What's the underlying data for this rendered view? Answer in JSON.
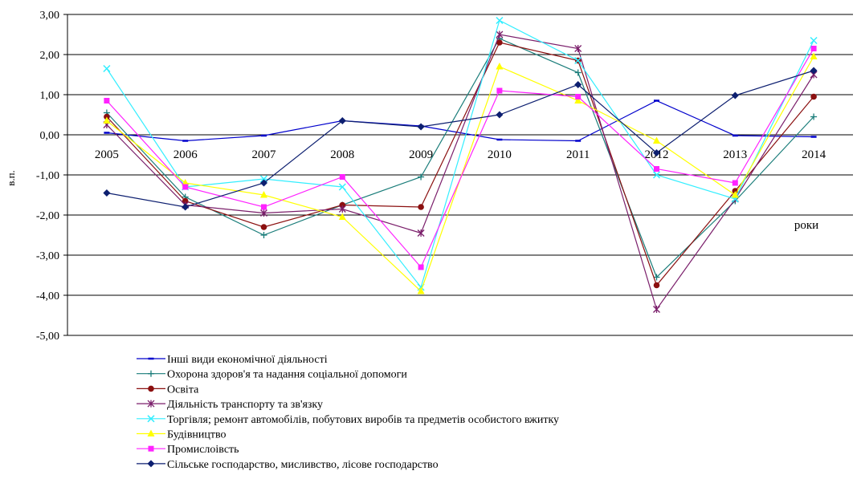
{
  "chart_data": {
    "type": "line",
    "title": "",
    "xlabel": "роки",
    "ylabel": "в.п.",
    "categories": [
      "2005",
      "2006",
      "2007",
      "2008",
      "2009",
      "2010",
      "2011",
      "2012",
      "2013",
      "2014"
    ],
    "ylim": [
      -5,
      3
    ],
    "y_ticks": [
      "3,00",
      "2,00",
      "1,00",
      "0,00",
      "-1,00",
      "-2,00",
      "-3,00",
      "-4,00",
      "-5,00"
    ],
    "grid": true,
    "legend_position": "bottom",
    "series": [
      {
        "name": "Інші види економічної діяльності",
        "color": "#0000cc",
        "marker": "dash",
        "values": [
          0.05,
          -0.15,
          -0.02,
          0.35,
          0.22,
          -0.12,
          -0.15,
          0.85,
          -0.02,
          -0.05
        ]
      },
      {
        "name": "Охорона здоров'я та надання  соціальної допомоги",
        "color": "#1a7d7a",
        "marker": "plus",
        "values": [
          0.55,
          -1.55,
          -2.5,
          -1.75,
          -1.05,
          2.4,
          1.55,
          -3.55,
          -1.65,
          0.45
        ]
      },
      {
        "name": "Освіта",
        "color": "#8b1010",
        "marker": "circle",
        "values": [
          0.45,
          -1.65,
          -2.3,
          -1.75,
          -1.8,
          2.3,
          1.85,
          -3.75,
          -1.4,
          0.95
        ]
      },
      {
        "name": "Діяльність транспорту та зв'язку",
        "color": "#7b1f6b",
        "marker": "star",
        "values": [
          0.25,
          -1.75,
          -1.95,
          -1.85,
          -2.45,
          2.5,
          2.15,
          -4.35,
          -1.6,
          1.5
        ]
      },
      {
        "name": "Торгівля; ремонт автомобілів, побутових виробів та предметів особистого вжитку",
        "color": "#33eeff",
        "marker": "x",
        "values": [
          1.65,
          -1.3,
          -1.1,
          -1.3,
          -3.8,
          2.85,
          1.85,
          -1.0,
          -1.6,
          2.35
        ]
      },
      {
        "name": "Будівництво",
        "color": "#ffff00",
        "marker": "triangle",
        "values": [
          0.35,
          -1.2,
          -1.5,
          -2.05,
          -3.9,
          1.7,
          0.85,
          -0.15,
          -1.5,
          1.95
        ]
      },
      {
        "name": "Промислоівсть",
        "color": "#ff22ff",
        "marker": "square",
        "values": [
          0.85,
          -1.3,
          -1.8,
          -1.05,
          -3.3,
          1.1,
          0.95,
          -0.85,
          -1.2,
          2.15
        ]
      },
      {
        "name": "Сільське господарство, мисливство, лісове господарство",
        "color": "#0d1f70",
        "marker": "diamond",
        "values": [
          -1.45,
          -1.8,
          -1.2,
          0.35,
          0.2,
          0.5,
          1.25,
          -0.45,
          0.98,
          1.6
        ]
      }
    ]
  }
}
